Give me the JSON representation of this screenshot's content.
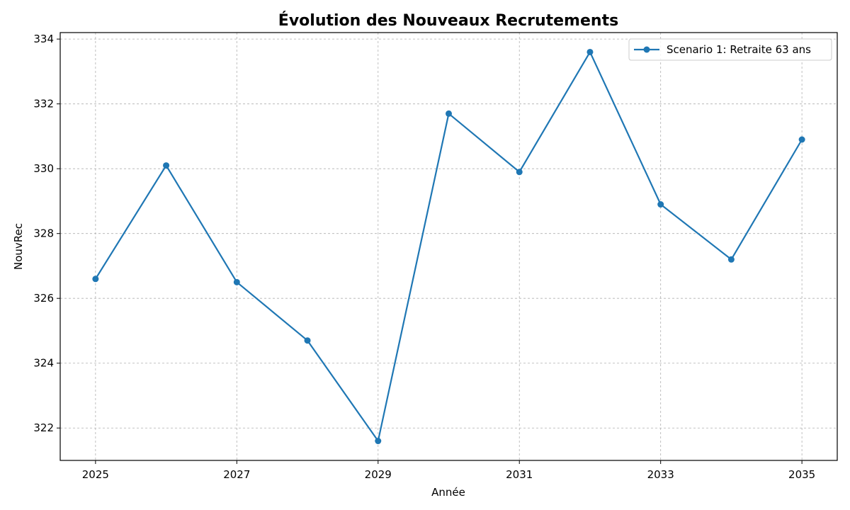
{
  "chart_data": {
    "type": "line",
    "title": "Évolution des Nouveaux Recrutements",
    "xlabel": "Année",
    "ylabel": "NouvRec",
    "x": [
      2025,
      2026,
      2027,
      2028,
      2029,
      2030,
      2031,
      2032,
      2033,
      2034,
      2035
    ],
    "series": [
      {
        "name": "Scenario 1: Retraite 63 ans",
        "color": "#1f77b4",
        "marker": "circle",
        "values": [
          326.6,
          330.1,
          326.5,
          324.7,
          321.6,
          331.7,
          329.9,
          333.6,
          328.9,
          327.2,
          330.9
        ]
      }
    ],
    "xlim": [
      2024.5,
      2035.5
    ],
    "ylim": [
      321.0,
      334.2
    ],
    "xticks": [
      "2025",
      "2027",
      "2029",
      "2031",
      "2033",
      "2035"
    ],
    "yticks": [
      "322",
      "324",
      "326",
      "328",
      "330",
      "332",
      "334"
    ],
    "grid": true,
    "legend_position": "top-right"
  }
}
